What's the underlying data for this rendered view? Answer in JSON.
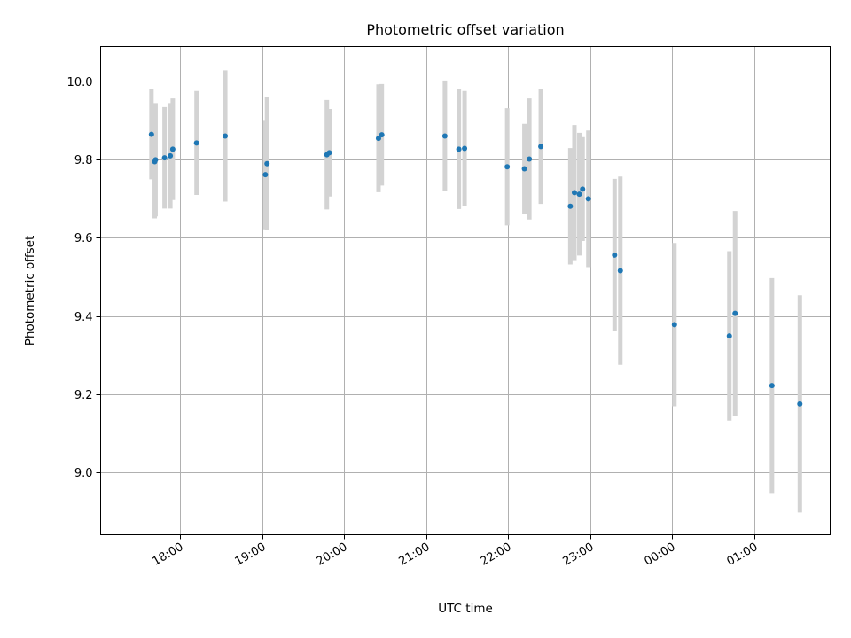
{
  "chart_data": {
    "type": "scatter",
    "title": "Photometric offset variation",
    "xlabel": "UTC time",
    "ylabel": "Photometric offset",
    "x_axis": "time",
    "x_ticks": [
      "18:00",
      "19:00",
      "20:00",
      "21:00",
      "22:00",
      "23:00",
      "00:00",
      "01:00"
    ],
    "x_tick_hours": [
      18,
      19,
      20,
      21,
      22,
      23,
      24,
      25
    ],
    "xlim_hours": [
      17.03,
      25.93
    ],
    "ylim": [
      8.84,
      10.09
    ],
    "y_ticks": [
      9.0,
      9.2,
      9.4,
      9.6,
      9.8,
      10.0
    ],
    "y_tick_labels": [
      "9.0",
      "9.2",
      "9.4",
      "9.6",
      "9.8",
      "10.0"
    ],
    "grid": true,
    "point_color": "#1f77b4",
    "errorbar_color": "#d3d3d3",
    "points": [
      {
        "t": 17.65,
        "y": 9.865,
        "err": 0.115
      },
      {
        "t": 17.69,
        "y": 9.795,
        "err": 0.145
      },
      {
        "t": 17.7,
        "y": 9.8,
        "err": 0.145
      },
      {
        "t": 17.81,
        "y": 9.805,
        "err": 0.13
      },
      {
        "t": 17.88,
        "y": 9.81,
        "err": 0.135
      },
      {
        "t": 17.91,
        "y": 9.827,
        "err": 0.13
      },
      {
        "t": 18.2,
        "y": 9.843,
        "err": 0.133
      },
      {
        "t": 18.55,
        "y": 9.861,
        "err": 0.168
      },
      {
        "t": 19.04,
        "y": 9.762,
        "err": 0.14
      },
      {
        "t": 19.06,
        "y": 9.79,
        "err": 0.17
      },
      {
        "t": 19.79,
        "y": 9.813,
        "err": 0.14
      },
      {
        "t": 19.82,
        "y": 9.818,
        "err": 0.112
      },
      {
        "t": 20.42,
        "y": 9.855,
        "err": 0.138
      },
      {
        "t": 20.46,
        "y": 9.864,
        "err": 0.13
      },
      {
        "t": 21.23,
        "y": 9.861,
        "err": 0.142
      },
      {
        "t": 21.4,
        "y": 9.827,
        "err": 0.153
      },
      {
        "t": 21.47,
        "y": 9.829,
        "err": 0.147
      },
      {
        "t": 21.99,
        "y": 9.782,
        "err": 0.15
      },
      {
        "t": 22.2,
        "y": 9.777,
        "err": 0.115
      },
      {
        "t": 22.26,
        "y": 9.802,
        "err": 0.155
      },
      {
        "t": 22.4,
        "y": 9.834,
        "err": 0.147
      },
      {
        "t": 22.76,
        "y": 9.681,
        "err": 0.149
      },
      {
        "t": 22.81,
        "y": 9.716,
        "err": 0.173
      },
      {
        "t": 22.87,
        "y": 9.712,
        "err": 0.157
      },
      {
        "t": 22.91,
        "y": 9.725,
        "err": 0.133
      },
      {
        "t": 22.98,
        "y": 9.7,
        "err": 0.175
      },
      {
        "t": 23.3,
        "y": 9.556,
        "err": 0.195
      },
      {
        "t": 23.37,
        "y": 9.516,
        "err": 0.241
      },
      {
        "t": 24.03,
        "y": 9.378,
        "err": 0.209
      },
      {
        "t": 24.7,
        "y": 9.349,
        "err": 0.217
      },
      {
        "t": 24.77,
        "y": 9.407,
        "err": 0.262
      },
      {
        "t": 25.22,
        "y": 9.222,
        "err": 0.275
      },
      {
        "t": 25.56,
        "y": 9.175,
        "err": 0.278
      }
    ]
  }
}
